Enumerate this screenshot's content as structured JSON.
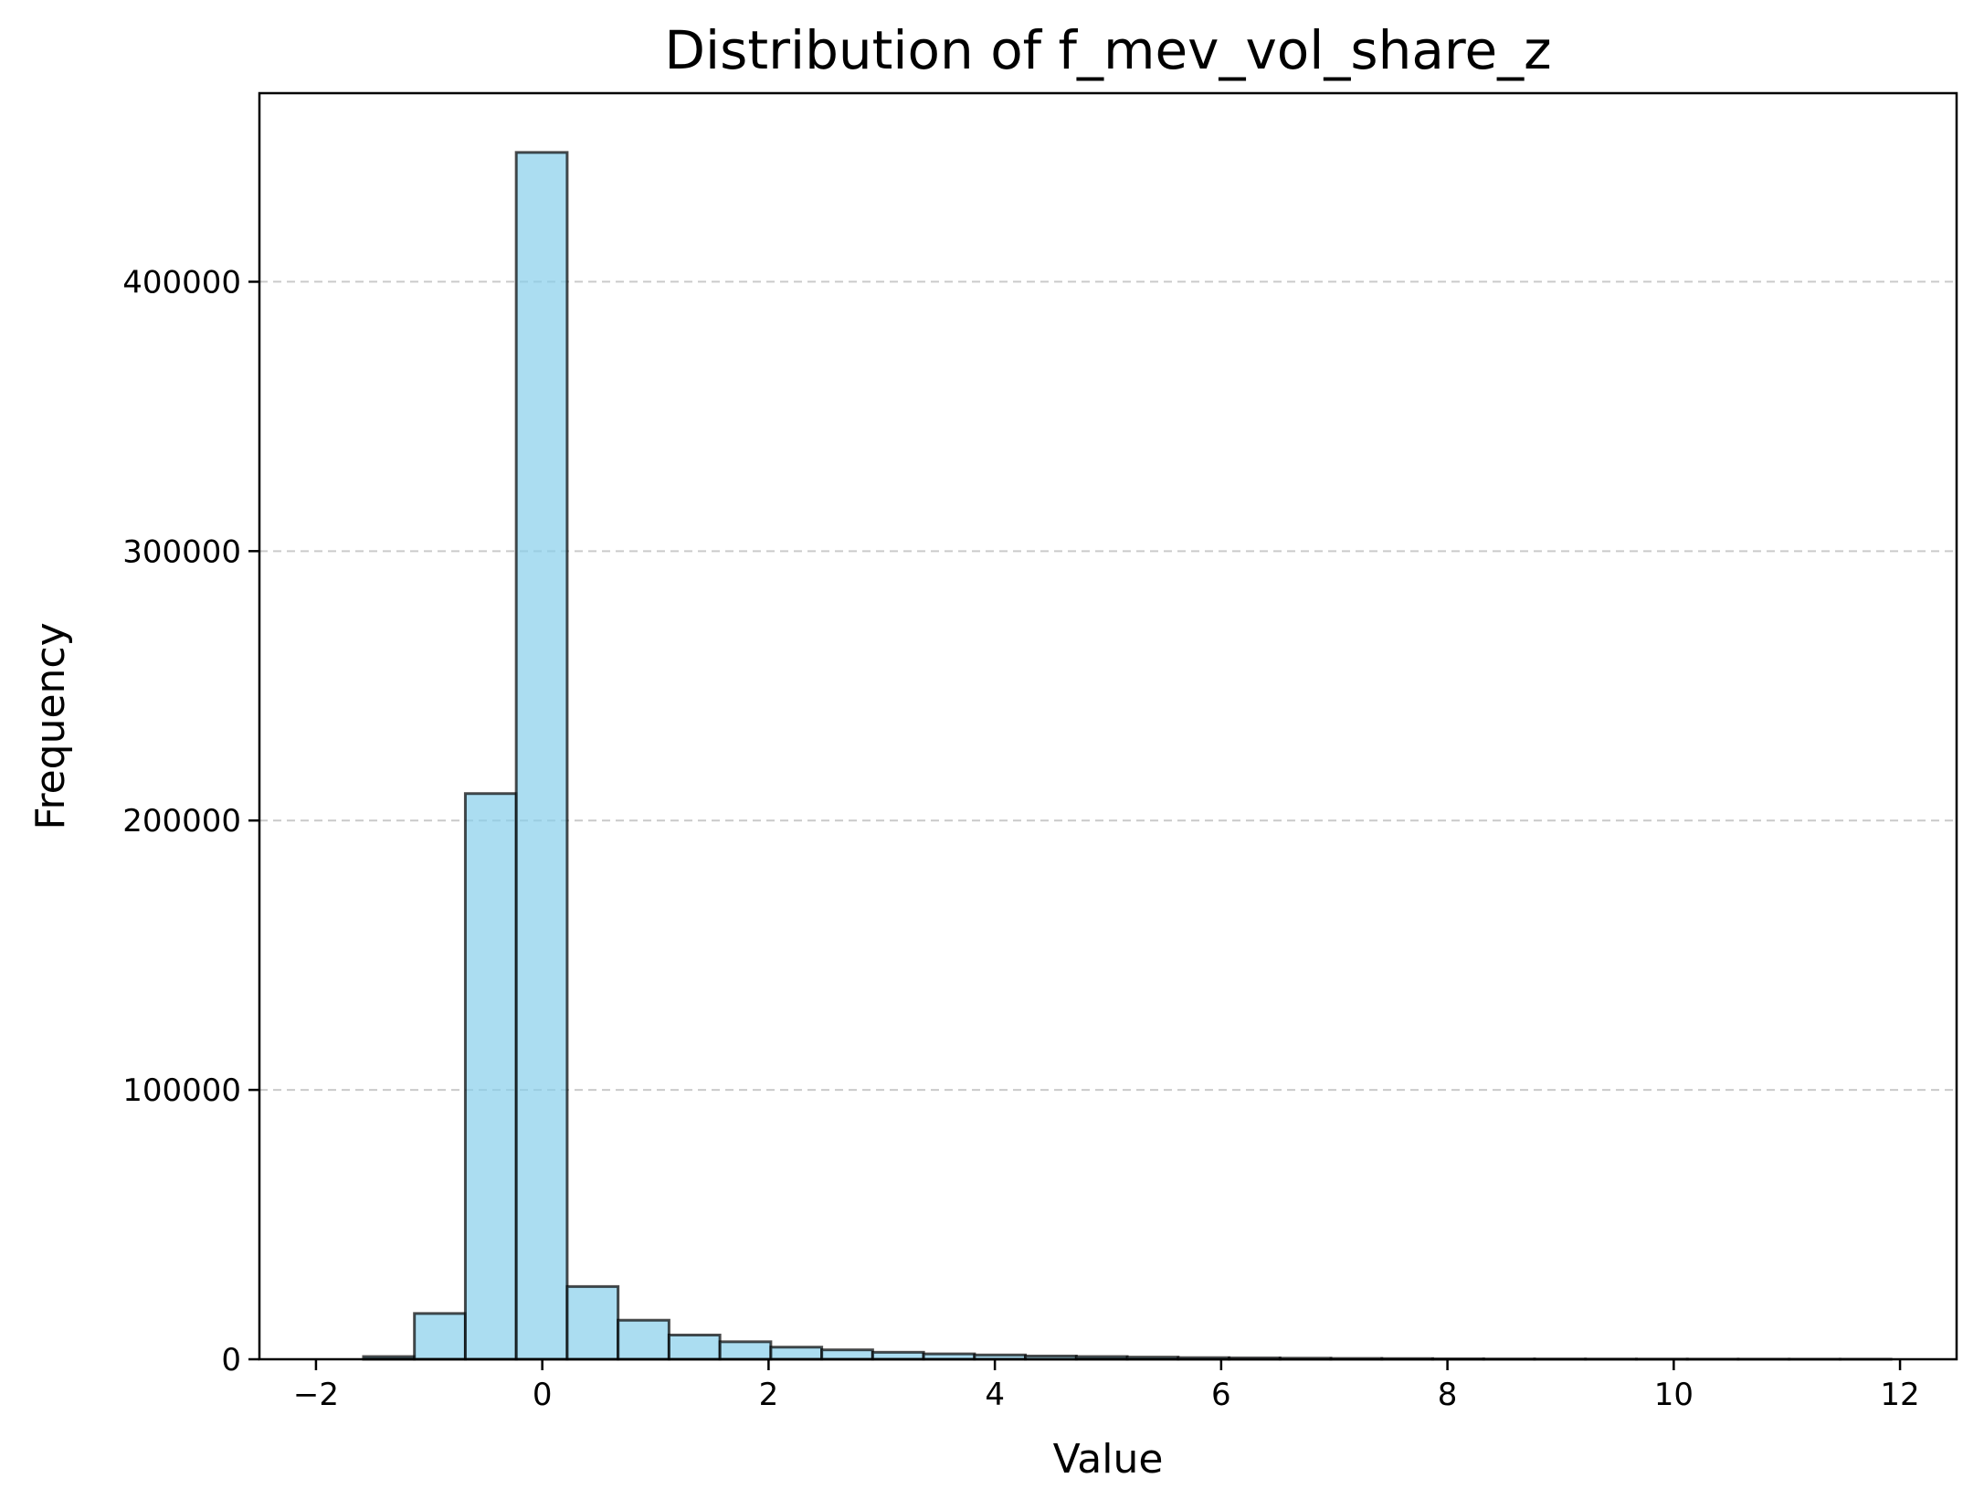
{
  "chart_data": {
    "type": "bar",
    "title": "Distribution of f_mev_vol_share_z",
    "xlabel": "Value",
    "ylabel": "Frequency",
    "xlim": [
      -2.5,
      12.5
    ],
    "ylim": [
      0,
      470000
    ],
    "x_ticks": [
      -2,
      0,
      2,
      4,
      6,
      8,
      10,
      12
    ],
    "x_tick_labels": [
      "−2",
      "0",
      "2",
      "4",
      "6",
      "8",
      "10",
      "12"
    ],
    "y_ticks": [
      0,
      100000,
      200000,
      300000,
      400000
    ],
    "y_tick_labels": [
      "0",
      "100000",
      "200000",
      "300000",
      "400000"
    ],
    "grid": "y-dashed",
    "bar_fill": "#87CEEB",
    "bar_edge": "#000000",
    "bin_edges": [
      -1.58,
      -1.13,
      -0.68,
      -0.23,
      0.22,
      0.67,
      1.12,
      1.57,
      2.02,
      2.47,
      2.92,
      3.37,
      3.82,
      4.27,
      4.72,
      5.17,
      5.62,
      6.07,
      6.52,
      6.97,
      7.42,
      7.87,
      8.32,
      8.77,
      9.22,
      9.67,
      10.12,
      10.57,
      11.02,
      11.47,
      11.92
    ],
    "values": [
      1000,
      17000,
      210000,
      448000,
      27000,
      14500,
      9000,
      6500,
      4500,
      3500,
      2600,
      2000,
      1600,
      1200,
      1000,
      800,
      600,
      500,
      400,
      300,
      250,
      150,
      100,
      80,
      60,
      50,
      40,
      30,
      20,
      15
    ]
  }
}
